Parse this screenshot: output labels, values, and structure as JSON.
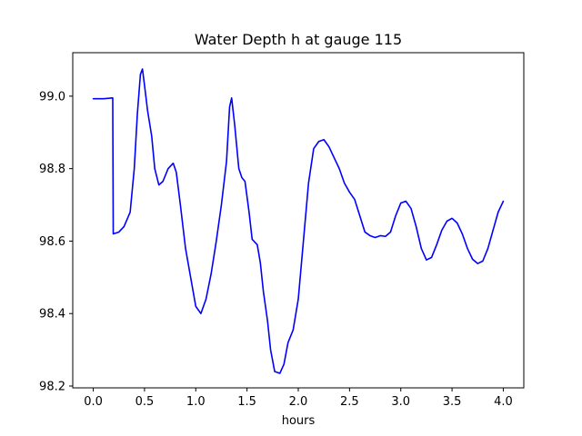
{
  "chart_data": {
    "type": "line",
    "title": "Water Depth h at gauge 115",
    "xlabel": "hours",
    "ylabel": "",
    "xlim": [
      -0.2,
      4.2
    ],
    "ylim": [
      98.195,
      99.12
    ],
    "xticks": [
      0.0,
      0.5,
      1.0,
      1.5,
      2.0,
      2.5,
      3.0,
      3.5,
      4.0
    ],
    "xtick_labels": [
      "0.0",
      "0.5",
      "1.0",
      "1.5",
      "2.0",
      "2.5",
      "3.0",
      "3.5",
      "4.0"
    ],
    "yticks": [
      98.2,
      98.4,
      98.6,
      98.8,
      99.0
    ],
    "ytick_labels": [
      "98.2",
      "98.4",
      "98.6",
      "98.8",
      "99.0"
    ],
    "grid": false,
    "series": [
      {
        "color": "#0000ff",
        "points": [
          [
            0.0,
            98.993
          ],
          [
            0.1,
            98.993
          ],
          [
            0.19,
            98.995
          ],
          [
            0.195,
            98.62
          ],
          [
            0.25,
            98.625
          ],
          [
            0.3,
            98.64
          ],
          [
            0.36,
            98.68
          ],
          [
            0.4,
            98.8
          ],
          [
            0.43,
            98.95
          ],
          [
            0.46,
            99.06
          ],
          [
            0.48,
            99.075
          ],
          [
            0.5,
            99.03
          ],
          [
            0.53,
            98.96
          ],
          [
            0.57,
            98.89
          ],
          [
            0.6,
            98.8
          ],
          [
            0.64,
            98.755
          ],
          [
            0.68,
            98.765
          ],
          [
            0.73,
            98.8
          ],
          [
            0.78,
            98.815
          ],
          [
            0.81,
            98.79
          ],
          [
            0.85,
            98.7
          ],
          [
            0.9,
            98.58
          ],
          [
            0.95,
            98.5
          ],
          [
            1.0,
            98.42
          ],
          [
            1.05,
            98.4
          ],
          [
            1.1,
            98.44
          ],
          [
            1.15,
            98.51
          ],
          [
            1.2,
            98.6
          ],
          [
            1.25,
            98.7
          ],
          [
            1.3,
            98.82
          ],
          [
            1.33,
            98.97
          ],
          [
            1.35,
            98.995
          ],
          [
            1.38,
            98.92
          ],
          [
            1.42,
            98.8
          ],
          [
            1.45,
            98.775
          ],
          [
            1.48,
            98.765
          ],
          [
            1.52,
            98.68
          ],
          [
            1.55,
            98.605
          ],
          [
            1.6,
            98.59
          ],
          [
            1.63,
            98.54
          ],
          [
            1.66,
            98.46
          ],
          [
            1.7,
            98.38
          ],
          [
            1.73,
            98.3
          ],
          [
            1.77,
            98.24
          ],
          [
            1.82,
            98.235
          ],
          [
            1.86,
            98.26
          ],
          [
            1.9,
            98.32
          ],
          [
            1.95,
            98.355
          ],
          [
            2.0,
            98.44
          ],
          [
            2.05,
            98.6
          ],
          [
            2.1,
            98.76
          ],
          [
            2.15,
            98.855
          ],
          [
            2.2,
            98.875
          ],
          [
            2.25,
            98.88
          ],
          [
            2.3,
            98.86
          ],
          [
            2.35,
            98.83
          ],
          [
            2.4,
            98.8
          ],
          [
            2.45,
            98.76
          ],
          [
            2.5,
            98.735
          ],
          [
            2.55,
            98.715
          ],
          [
            2.6,
            98.67
          ],
          [
            2.65,
            98.625
          ],
          [
            2.7,
            98.615
          ],
          [
            2.75,
            98.61
          ],
          [
            2.8,
            98.615
          ],
          [
            2.85,
            98.613
          ],
          [
            2.9,
            98.625
          ],
          [
            2.95,
            98.67
          ],
          [
            3.0,
            98.705
          ],
          [
            3.05,
            98.71
          ],
          [
            3.1,
            98.69
          ],
          [
            3.15,
            98.64
          ],
          [
            3.2,
            98.58
          ],
          [
            3.25,
            98.548
          ],
          [
            3.3,
            98.555
          ],
          [
            3.35,
            98.59
          ],
          [
            3.4,
            98.63
          ],
          [
            3.45,
            98.655
          ],
          [
            3.5,
            98.663
          ],
          [
            3.55,
            98.65
          ],
          [
            3.6,
            98.62
          ],
          [
            3.65,
            98.58
          ],
          [
            3.7,
            98.55
          ],
          [
            3.75,
            98.538
          ],
          [
            3.8,
            98.545
          ],
          [
            3.85,
            98.58
          ],
          [
            3.9,
            98.63
          ],
          [
            3.95,
            98.68
          ],
          [
            4.0,
            98.71
          ]
        ]
      }
    ]
  }
}
